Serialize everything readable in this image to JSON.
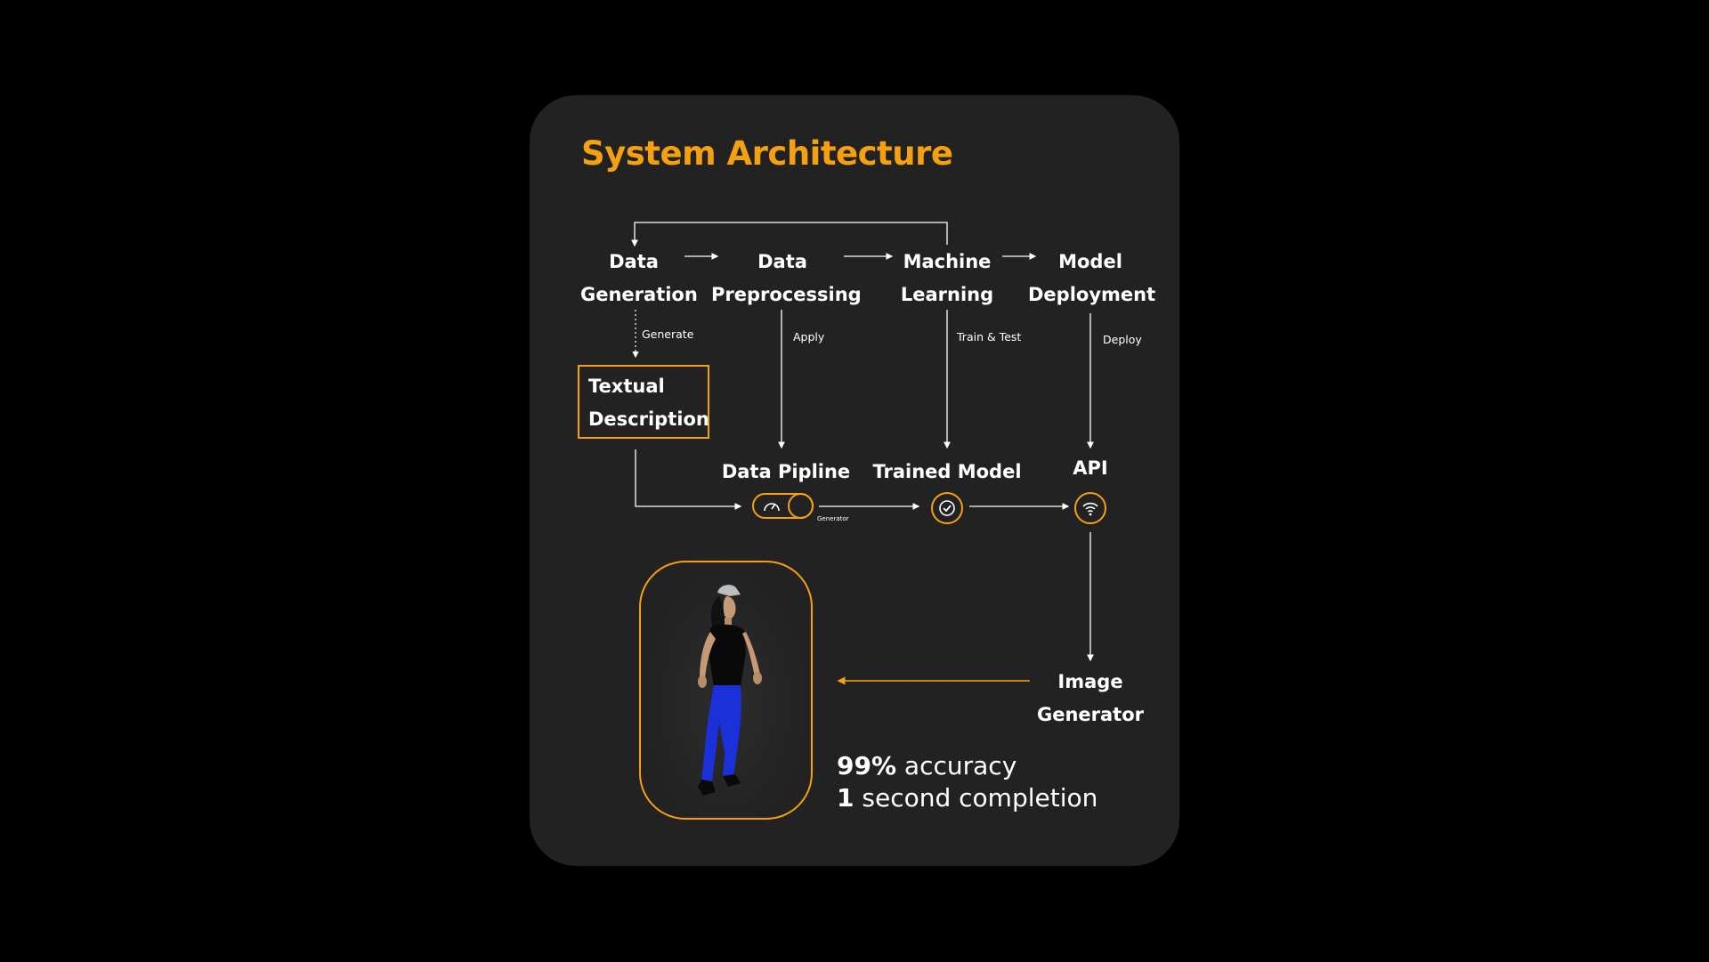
{
  "title": "System Architecture",
  "colors": {
    "accent": "#f5a10f",
    "card": "#222222",
    "background": "#000000",
    "text": "#ffffff"
  },
  "nodes": {
    "data_generation": [
      "Data",
      "Generation"
    ],
    "data_preprocessing": [
      "Data",
      "Preprocessing"
    ],
    "machine_learning": [
      "Machine",
      "Learning"
    ],
    "model_deployment": [
      "Model",
      "Deployment"
    ],
    "textual_description": [
      "Textual",
      "Description"
    ],
    "data_pipeline": "Data Pipline",
    "trained_model": "Trained Model",
    "api": "API",
    "image_generator": [
      "Image",
      "Generator"
    ]
  },
  "edge_labels": {
    "generate": "Generate",
    "apply": "Apply",
    "train_test": "Train & Test",
    "deploy": "Deploy",
    "generator": "Generator"
  },
  "icons": {
    "pipeline": "speedometer-toggle-icon",
    "trained_model": "check-circle-icon",
    "api": "wifi-icon",
    "output": "3d-avatar-image"
  },
  "stats": [
    {
      "value": "99%",
      "text": " accuracy"
    },
    {
      "value": "1",
      "text": " second completion"
    }
  ]
}
